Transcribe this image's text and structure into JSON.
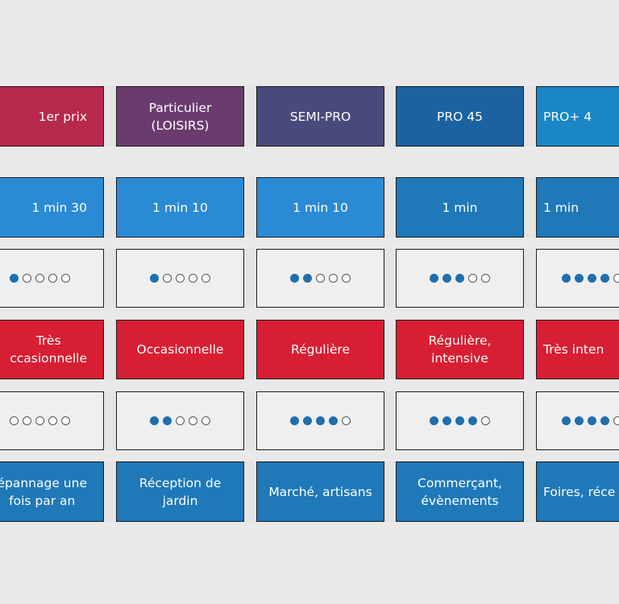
{
  "rows": [
    {
      "cells": [
        "1er prix",
        "Particulier\n(LOISIRS)",
        "SEMI-PRO",
        "PRO 45",
        "PRO+ 4"
      ]
    },
    {
      "cells": [
        "1 min 30",
        "1 min 10",
        "1 min 10",
        "1 min",
        "1 min"
      ]
    },
    {
      "ratings": [
        1,
        1,
        2,
        3,
        4
      ]
    },
    {
      "cells": [
        "Très\nccasionnelle",
        "Occasionnelle",
        "Régulière",
        "Régulière,\nintensive",
        "Très inten"
      ]
    },
    {
      "ratings": [
        0,
        2,
        4,
        4,
        4
      ]
    },
    {
      "cells": [
        "épannage une\nfois par an",
        "Réception de\njardin",
        "Marché, artisans",
        "Commerçant,\névènements",
        "Foires, réce"
      ]
    }
  ]
}
